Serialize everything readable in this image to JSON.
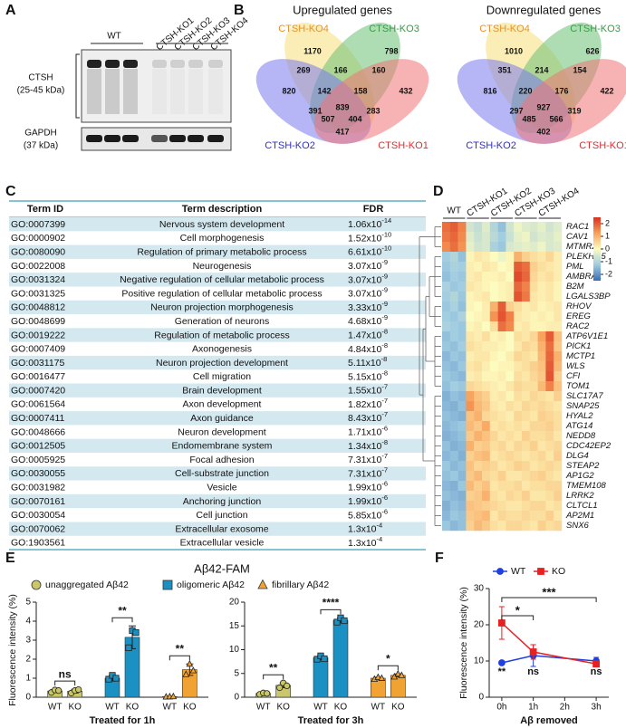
{
  "panel_a": {
    "label": "A",
    "lanes_header": "WT",
    "ko_lanes": [
      "CTSH-KO1",
      "CTSH-KO2",
      "CTSH-KO3",
      "CTSH-KO4"
    ],
    "blots": [
      {
        "name": "CTSH",
        "detail": "(25-45 kDa)"
      },
      {
        "name": "GAPDH",
        "detail": "(37 kDa)"
      }
    ]
  },
  "panel_b": {
    "label": "B",
    "venns": [
      {
        "title": "Upregulated genes",
        "sets": [
          "CTSH-KO4",
          "CTSH-KO3",
          "CTSH-KO2",
          "CTSH-KO1"
        ],
        "set_colors": [
          "#e8902a",
          "#3a9a4a",
          "#2f2fd0",
          "#d83030"
        ],
        "fill_colors": [
          "#f6e07a",
          "#6cbf74",
          "#7a7aee",
          "#f07474"
        ],
        "counts": [
          1170,
          798,
          269,
          166,
          160,
          820,
          142,
          158,
          432,
          391,
          839,
          283,
          507,
          404,
          417
        ]
      },
      {
        "title": "Downregulated genes",
        "sets": [
          "CTSH-KO4",
          "CTSH-KO3",
          "CTSH-KO2",
          "CTSH-KO1"
        ],
        "set_colors": [
          "#e8902a",
          "#3a9a4a",
          "#2f2fd0",
          "#d83030"
        ],
        "fill_colors": [
          "#f6e07a",
          "#6cbf74",
          "#7a7aee",
          "#f07474"
        ],
        "counts": [
          1010,
          626,
          351,
          214,
          154,
          816,
          220,
          176,
          422,
          297,
          927,
          319,
          485,
          566,
          402
        ]
      }
    ]
  },
  "panel_c": {
    "label": "C",
    "table": {
      "header": [
        "Term ID",
        "Term description",
        "FDR"
      ],
      "rows": [
        [
          "GO:0007399",
          "Nervous system development",
          "1.06x10",
          "-14"
        ],
        [
          "GO:0000902",
          "Cell morphogenesis",
          "1.52x10",
          "-10"
        ],
        [
          "GO:0080090",
          "Regulation of primary metabolic process",
          "6.61x10",
          "-10"
        ],
        [
          "GO:0022008",
          "Neurogenesis",
          "3.07x10",
          "-9"
        ],
        [
          "GO:0031324",
          "Negative regulation of cellular metabolic process",
          "3.07x10",
          "-9"
        ],
        [
          "GO:0031325",
          "Positive regulation of cellular metabolic process",
          "3.07x10",
          "-9"
        ],
        [
          "GO:0048812",
          "Neuron projection morphogenesis",
          "3.33x10",
          "-9"
        ],
        [
          "GO:0048699",
          "Generation of neurons",
          "4.68x10",
          "-9"
        ],
        [
          "GO:0019222",
          "Regulation of metabolic process",
          "1.47x10",
          "-8"
        ],
        [
          "GO:0007409",
          "Axonogenesis",
          "4.84x10",
          "-8"
        ],
        [
          "GO:0031175",
          "Neuron projection development",
          "5.11x10",
          "-8"
        ],
        [
          "GO:0016477",
          "Cell migration",
          "5.15x10",
          "-8"
        ],
        [
          "GO:0007420",
          "Brain development",
          "1.55x10",
          "-7"
        ],
        [
          "GO:0061564",
          "Axon development",
          "1.82x10",
          "-7"
        ],
        [
          "GO:0007411",
          "Axon guidance",
          "8.43x10",
          "-7"
        ],
        [
          "GO:0048666",
          "Neuron development",
          "1.71x10",
          "-6"
        ],
        [
          "GO:0012505",
          "Endomembrane system",
          "1.34x10",
          "-8"
        ],
        [
          "GO:0005925",
          "Focal adhesion",
          "7.31x10",
          "-7"
        ],
        [
          "GO:0030055",
          "Cell-substrate junction",
          "7.31x10",
          "-7"
        ],
        [
          "GO:0031982",
          "Vesicle",
          "1.99x10",
          "-6"
        ],
        [
          "GO:0070161",
          "Anchoring junction",
          "1.99x10",
          "-6"
        ],
        [
          "GO:0030054",
          "Cell junction",
          "5.85x10",
          "-6"
        ],
        [
          "GO:0070062",
          "Extracellular exosome",
          "1.3x10",
          "-4"
        ],
        [
          "GO:1903561",
          "Extracellular vesicle",
          "1.3x10",
          "-4"
        ]
      ]
    }
  },
  "panel_d": {
    "label": "D",
    "columns": [
      "WT",
      "CTSH-KO1",
      "CTSH-KO2",
      "CTSH-KO3",
      "CTSH-KO4"
    ],
    "genes": [
      "RAC1",
      "CAV1",
      "MTMR2",
      "PLEKHG5",
      "PML",
      "AMBRA1",
      "B2M",
      "LGALS3BP",
      "RHOV",
      "EREG",
      "RAC2",
      "ATP6V1E1",
      "PICK1",
      "MCTP1",
      "WLS",
      "CFI",
      "TOM1",
      "SLC17A7",
      "SNAP25",
      "HYAL2",
      "ATG14",
      "NEDD8",
      "CDC42EP2",
      "DLG4",
      "STEAP2",
      "AP1G2",
      "TMEM108",
      "LRRK2",
      "CLTCL1",
      "AP2M1",
      "SNX6"
    ],
    "matrix": [
      [
        1.8,
        2.0,
        1.6,
        -0.6,
        -0.8,
        -0.4,
        -1.0,
        -1.4,
        -0.6,
        -0.2,
        -0.4,
        -0.5,
        -0.3,
        -0.6,
        -0.4
      ],
      [
        1.7,
        1.9,
        1.5,
        -0.4,
        -0.7,
        -0.5,
        -0.9,
        -1.2,
        -0.7,
        -0.3,
        -0.2,
        -0.6,
        -0.4,
        -0.5,
        -0.3
      ],
      [
        1.5,
        1.8,
        1.4,
        -0.3,
        -0.6,
        -0.5,
        -1.1,
        -1.3,
        -0.5,
        -0.4,
        -0.3,
        -0.4,
        -0.2,
        -0.5,
        -0.4
      ],
      [
        -1.2,
        -1.0,
        -1.4,
        0.1,
        0.3,
        0.2,
        0.0,
        -0.2,
        0.1,
        1.0,
        0.6,
        0.4,
        0.3,
        0.5,
        0.2
      ],
      [
        -1.3,
        -1.1,
        -1.2,
        0.2,
        0.1,
        0.3,
        0.2,
        0.0,
        0.1,
        2.0,
        1.8,
        0.6,
        0.4,
        0.3,
        0.2
      ],
      [
        -1.4,
        -1.2,
        -1.3,
        0.2,
        0.3,
        0.1,
        0.1,
        0.2,
        0.0,
        2.2,
        1.9,
        0.5,
        0.3,
        0.4,
        0.2
      ],
      [
        -1.1,
        -1.3,
        -1.2,
        0.3,
        0.2,
        0.1,
        0.0,
        0.1,
        0.2,
        1.9,
        1.6,
        0.4,
        0.2,
        0.3,
        0.1
      ],
      [
        -1.2,
        -1.0,
        -1.3,
        0.1,
        0.2,
        0.3,
        0.0,
        0.1,
        0.2,
        2.1,
        1.7,
        0.3,
        0.2,
        0.3,
        0.1
      ],
      [
        -1.3,
        -1.1,
        -1.4,
        0.1,
        0.0,
        0.2,
        1.0,
        2.0,
        0.6,
        0.4,
        0.2,
        0.3,
        0.1,
        0.2,
        0.3
      ],
      [
        -1.2,
        -1.3,
        -1.1,
        0.0,
        0.1,
        0.2,
        1.4,
        2.1,
        1.6,
        0.3,
        0.2,
        0.1,
        0.2,
        0.1,
        0.3
      ],
      [
        -1.1,
        -1.2,
        -1.3,
        0.1,
        0.2,
        0.0,
        0.4,
        1.8,
        1.5,
        0.2,
        0.3,
        0.1,
        0.1,
        0.2,
        0.2
      ],
      [
        -1.4,
        -1.2,
        -1.3,
        0.3,
        0.2,
        0.4,
        0.1,
        0.2,
        0.0,
        0.4,
        0.3,
        0.5,
        1.2,
        2.0,
        0.8
      ],
      [
        -1.3,
        -1.4,
        -1.2,
        0.4,
        0.3,
        0.2,
        0.2,
        0.1,
        0.0,
        0.3,
        0.5,
        0.4,
        1.0,
        1.8,
        0.7
      ],
      [
        -1.5,
        -1.3,
        -1.4,
        0.2,
        0.3,
        0.3,
        0.1,
        0.0,
        0.2,
        0.5,
        0.4,
        0.3,
        0.9,
        1.9,
        1.0
      ],
      [
        -1.4,
        -1.5,
        -1.3,
        0.3,
        0.4,
        0.2,
        0.0,
        0.1,
        0.1,
        0.3,
        0.4,
        0.6,
        0.8,
        2.0,
        0.9
      ],
      [
        -1.3,
        -1.4,
        -1.5,
        0.2,
        0.3,
        0.1,
        0.1,
        0.2,
        0.0,
        0.4,
        0.3,
        0.5,
        0.7,
        2.1,
        0.6
      ],
      [
        -1.4,
        -1.2,
        -1.3,
        0.5,
        0.4,
        0.3,
        0.2,
        0.1,
        0.3,
        0.5,
        0.4,
        0.4,
        0.9,
        1.6,
        0.8
      ],
      [
        -1.6,
        -1.4,
        -1.5,
        1.2,
        0.8,
        0.6,
        0.2,
        0.3,
        0.1,
        0.4,
        0.3,
        0.5,
        0.4,
        0.3,
        0.6
      ],
      [
        -1.5,
        -1.6,
        -1.4,
        1.4,
        0.9,
        0.7,
        0.3,
        0.2,
        0.4,
        0.3,
        0.5,
        0.4,
        0.5,
        0.4,
        0.3
      ],
      [
        -1.4,
        -1.5,
        -1.6,
        0.8,
        1.0,
        0.5,
        0.4,
        0.3,
        0.2,
        0.5,
        0.4,
        0.3,
        0.6,
        0.5,
        0.4
      ],
      [
        -1.5,
        -1.4,
        -1.3,
        0.9,
        0.7,
        1.1,
        0.3,
        0.4,
        0.3,
        0.4,
        0.3,
        0.5,
        0.5,
        0.6,
        0.4
      ],
      [
        -1.6,
        -1.5,
        -1.4,
        0.7,
        1.0,
        0.8,
        0.5,
        0.3,
        0.4,
        0.3,
        0.6,
        0.4,
        0.4,
        0.5,
        0.3
      ],
      [
        -1.4,
        -1.6,
        -1.5,
        1.0,
        0.6,
        0.7,
        0.4,
        0.5,
        0.3,
        0.5,
        0.4,
        0.6,
        0.3,
        0.4,
        0.5
      ],
      [
        -1.5,
        -1.4,
        -1.6,
        0.6,
        0.8,
        0.9,
        0.3,
        0.4,
        0.5,
        0.4,
        0.3,
        0.4,
        0.5,
        0.3,
        0.6
      ],
      [
        -1.3,
        -1.5,
        -1.4,
        0.8,
        0.5,
        0.6,
        0.5,
        0.3,
        0.4,
        0.6,
        0.5,
        0.3,
        0.4,
        0.5,
        0.4
      ],
      [
        -1.4,
        -1.3,
        -1.5,
        0.7,
        0.9,
        0.5,
        0.4,
        0.6,
        0.3,
        0.3,
        0.4,
        0.5,
        0.6,
        0.4,
        0.3
      ],
      [
        -1.5,
        -1.6,
        -1.3,
        0.9,
        0.6,
        0.8,
        0.3,
        0.4,
        0.4,
        0.5,
        0.3,
        0.4,
        0.4,
        0.5,
        0.5
      ],
      [
        -1.4,
        -1.5,
        -1.6,
        0.6,
        0.7,
        1.0,
        0.4,
        0.3,
        0.5,
        0.4,
        0.6,
        0.3,
        0.3,
        0.4,
        0.6
      ],
      [
        -1.6,
        -1.4,
        -1.5,
        0.8,
        0.7,
        0.6,
        0.5,
        0.4,
        0.3,
        0.3,
        0.4,
        0.5,
        0.5,
        0.3,
        0.4
      ],
      [
        -1.5,
        -1.3,
        -1.4,
        0.7,
        0.8,
        0.9,
        0.3,
        0.5,
        0.4,
        0.4,
        0.5,
        0.4,
        0.4,
        0.6,
        0.3
      ],
      [
        -1.3,
        -1.5,
        -1.4,
        0.6,
        0.9,
        0.7,
        0.4,
        0.3,
        0.5,
        0.5,
        0.4,
        0.3,
        0.6,
        0.4,
        0.5
      ]
    ],
    "clim": [
      -2.5,
      2.5
    ],
    "cticks": [
      2,
      1,
      0,
      -1,
      -2
    ],
    "colors": [
      "#3a6db3",
      "#9fcbe1",
      "#fdfcc0",
      "#f8a05a",
      "#d8301f"
    ]
  },
  "panel_e": {
    "label": "E",
    "title": "Aβ42-FAM",
    "legend": [
      {
        "name": "unaggregated Aβ42",
        "color": "#c9c76a",
        "marker": "circle"
      },
      {
        "name": "oligomeric Aβ42",
        "color": "#1b90c2",
        "marker": "square"
      },
      {
        "name": "fibrillary Aβ42",
        "color": "#f0a232",
        "marker": "triangle"
      }
    ]
  },
  "panel_f": {
    "label": "F"
  },
  "chart_data": [
    {
      "type": "bar",
      "categories": [
        "WT",
        "KO"
      ],
      "xlabel": "Treated for 1h",
      "ylabel": "Fluorescence intensity (%)",
      "ylim": [
        0,
        5
      ],
      "yticks": [
        0,
        1,
        2,
        3,
        4,
        5
      ],
      "series": [
        {
          "values": [
            0.33,
            0.32
          ],
          "errors": [
            0.08,
            0.1
          ],
          "points": [
            [
              0.25,
              0.38,
              0.35
            ],
            [
              0.22,
              0.35,
              0.4
            ]
          ],
          "significance": "ns"
        },
        {
          "values": [
            1.0,
            3.15
          ],
          "errors": [
            0.15,
            0.6
          ],
          "points": [
            [
              0.95,
              1.15,
              1.0
            ],
            [
              2.6,
              3.5,
              3.4
            ]
          ],
          "significance": "**"
        },
        {
          "values": [
            0.03,
            1.45
          ],
          "errors": [
            0.02,
            0.3
          ],
          "points": [
            [
              0.02,
              0.03,
              0.04
            ],
            [
              1.2,
              1.75,
              1.4
            ]
          ],
          "significance": "**"
        }
      ]
    },
    {
      "type": "bar",
      "categories": [
        "WT",
        "KO"
      ],
      "xlabel": "Treated for 3h",
      "ylim": [
        0,
        20
      ],
      "yticks": [
        0,
        5,
        10,
        15,
        20
      ],
      "series": [
        {
          "values": [
            0.8,
            2.5
          ],
          "errors": [
            0.2,
            0.5
          ],
          "points": [
            [
              0.6,
              0.9,
              0.8
            ],
            [
              2.0,
              3.0,
              2.4
            ]
          ],
          "significance": "**"
        },
        {
          "values": [
            8.3,
            16.2
          ],
          "errors": [
            0.4,
            0.5
          ],
          "points": [
            [
              8.0,
              8.7,
              8.1
            ],
            [
              15.8,
              16.7,
              16.1
            ]
          ],
          "significance": "****"
        },
        {
          "values": [
            4.0,
            4.6
          ],
          "errors": [
            0.2,
            0.3
          ],
          "points": [
            [
              3.8,
              4.2,
              4.0
            ],
            [
              4.3,
              4.9,
              4.6
            ]
          ],
          "significance": "*"
        }
      ]
    },
    {
      "type": "line",
      "xlabel": "Aβ removed",
      "ylabel": "Fluorescence intensity (%)",
      "xlim": [
        -0.4,
        3.4
      ],
      "xticks": [
        {
          "value": 0,
          "label": "0h"
        },
        {
          "value": 1,
          "label": "1h"
        },
        {
          "value": 2,
          "label": "2h"
        },
        {
          "value": 3,
          "label": "3h"
        }
      ],
      "ylim": [
        0,
        30
      ],
      "yticks": [
        0,
        10,
        20,
        30
      ],
      "series": [
        {
          "name": "WT",
          "color": "#1f3fe0",
          "marker": "circle",
          "x": [
            0,
            1,
            3
          ],
          "values": [
            9.5,
            11.5,
            10.0
          ],
          "errors": [
            0.5,
            3.0,
            1.0
          ]
        },
        {
          "name": "KO",
          "color": "#e82020",
          "marker": "square",
          "x": [
            0,
            1,
            3
          ],
          "values": [
            20.5,
            12.5,
            9.2
          ],
          "errors": [
            4.5,
            2.0,
            0.8
          ]
        }
      ],
      "brackets": [
        {
          "text": "***",
          "from": "0h",
          "to": "3h"
        },
        {
          "text": "*",
          "from": "0h",
          "to": "1h"
        }
      ],
      "point_labels": [
        "**",
        "ns",
        null,
        "ns"
      ]
    }
  ]
}
